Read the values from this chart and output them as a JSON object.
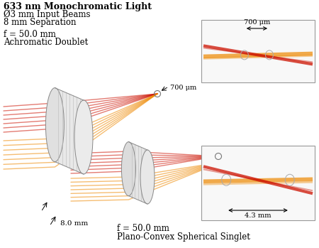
{
  "title_line1": "633 nm Monochromatic Light",
  "title_line2": "Ø3 mm Input Beams",
  "title_line3": "8 mm Separation",
  "label_doublet_f": "f = 50.0 mm",
  "label_doublet_type": "Achromatic Doublet",
  "label_singlet_f": "f = 50.0 mm",
  "label_singlet_type": "Plano-Convex Spherical Singlet",
  "label_700um": "700 μm",
  "label_43mm": "4.3 mm",
  "label_80mm": "8.0 mm",
  "bg_color": "#ffffff",
  "red_color": "#cc1100",
  "orange_color": "#ee8800",
  "lens_edge": "#888888",
  "lens_fill": "#f0f0f0",
  "lens_grid": "#bbbbbb"
}
